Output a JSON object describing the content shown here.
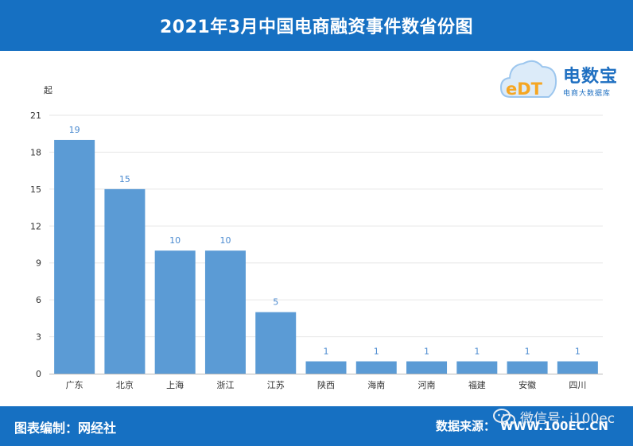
{
  "header": {
    "title": "2021年3月中国电商融资事件数省份图"
  },
  "logo": {
    "brand": "电数宝",
    "tagline": "电商大数据库",
    "mark": "eDT"
  },
  "footer": {
    "left": "图表编制：网经社",
    "source_label": "数据来源：",
    "source_value": "WWW.100EC.CN",
    "wechat": "微信号: i100ec"
  },
  "colors": {
    "header": "#1670c2",
    "bar": "#5b9bd5",
    "value": "#4a8ad0"
  },
  "chart_data": {
    "type": "bar",
    "title": "2021年3月中国电商融资事件数省份图",
    "ylabel": "起",
    "xlabel": "",
    "categories": [
      "广东",
      "北京",
      "上海",
      "浙江",
      "江苏",
      "陕西",
      "海南",
      "河南",
      "福建",
      "安徽",
      "四川"
    ],
    "values": [
      19,
      15,
      10,
      10,
      5,
      1,
      1,
      1,
      1,
      1,
      1
    ],
    "ylim": [
      0,
      21
    ],
    "yticks": [
      0,
      3,
      6,
      9,
      12,
      15,
      18,
      21
    ],
    "grid": true
  }
}
